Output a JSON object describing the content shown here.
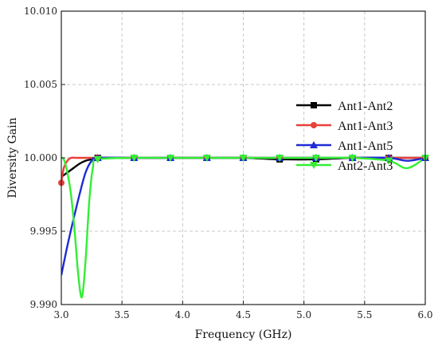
{
  "chart_data": {
    "type": "line",
    "xlabel": "Frequency (GHz)",
    "ylabel": "Diversity Gain",
    "xlim": [
      3.0,
      6.0
    ],
    "ylim": [
      9.99,
      10.01
    ],
    "x_ticks": [
      3.0,
      3.5,
      4.0,
      4.5,
      5.0,
      5.5,
      6.0
    ],
    "x_tick_labels": [
      "3.0",
      "3.5",
      "4.0",
      "4.5",
      "5.0",
      "5.5",
      "6.0"
    ],
    "y_ticks": [
      9.99,
      9.995,
      10.0,
      10.005,
      10.01
    ],
    "y_tick_labels": [
      "9.990",
      "9.995",
      "10.000",
      "10.005",
      "10.010"
    ],
    "grid": true,
    "legend_position": "right",
    "series": [
      {
        "name": "Ant1-Ant2",
        "color": "#000000",
        "marker": "square",
        "x": [
          3.0,
          3.05,
          3.1,
          3.15,
          3.2,
          3.25,
          3.3,
          3.6,
          3.9,
          4.2,
          4.5,
          4.8,
          5.1,
          5.4,
          5.7,
          6.0
        ],
        "y": [
          9.9987,
          9.999,
          9.9993,
          9.9996,
          9.9998,
          9.9999,
          10.0,
          10.0,
          10.0,
          10.0,
          10.0,
          9.9999,
          9.9999,
          10.0,
          10.0,
          10.0
        ]
      },
      {
        "name": "Ant1-Ant3",
        "color": "#e8403a",
        "marker": "circle",
        "x": [
          3.0,
          3.02,
          3.05,
          3.08,
          3.12,
          3.2,
          3.3,
          3.6,
          3.9,
          4.2,
          4.5,
          4.8,
          5.1,
          5.4,
          5.7,
          5.85,
          5.95,
          6.0
        ],
        "y": [
          9.9983,
          9.9993,
          9.9998,
          10.0,
          10.0,
          10.0,
          10.0,
          10.0,
          10.0,
          10.0,
          10.0,
          10.0,
          10.0,
          10.0,
          10.0,
          10.0,
          10.0,
          10.0
        ]
      },
      {
        "name": "Ant1-Ant5",
        "color": "#1f2bd4",
        "marker": "triangle",
        "x": [
          3.0,
          3.05,
          3.1,
          3.15,
          3.2,
          3.25,
          3.3,
          3.6,
          3.9,
          4.2,
          4.5,
          4.8,
          5.1,
          5.4,
          5.7,
          5.85,
          6.0
        ],
        "y": [
          9.992,
          9.994,
          9.9958,
          9.9975,
          9.999,
          9.9998,
          10.0,
          10.0,
          10.0,
          10.0,
          10.0,
          10.0,
          10.0,
          10.0,
          10.0,
          9.9998,
          10.0
        ]
      },
      {
        "name": "Ant2-Ant3",
        "color": "#33ee33",
        "marker": "triangle-down",
        "x": [
          3.0,
          3.02,
          3.05,
          3.08,
          3.11,
          3.14,
          3.17,
          3.2,
          3.23,
          3.26,
          3.3,
          3.6,
          3.9,
          4.2,
          4.5,
          4.8,
          5.1,
          5.4,
          5.7,
          5.85,
          6.0
        ],
        "y": [
          10.0,
          9.9999,
          9.999,
          9.9975,
          9.995,
          9.992,
          9.9905,
          9.993,
          9.997,
          9.9993,
          9.9999,
          10.0,
          10.0,
          10.0,
          10.0,
          10.0,
          10.0,
          10.0,
          9.9998,
          9.9993,
          10.0
        ]
      }
    ]
  }
}
